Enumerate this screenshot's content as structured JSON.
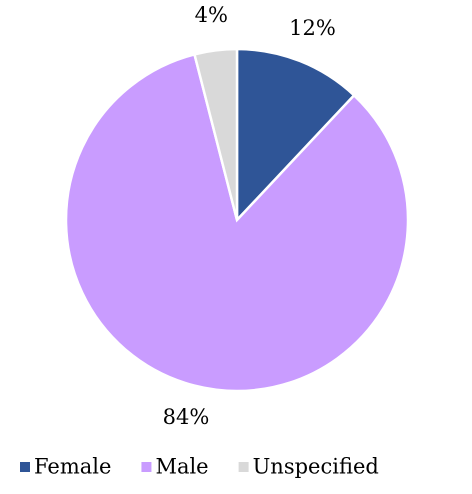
{
  "chart_data": {
    "type": "pie",
    "categories": [
      "Female",
      "Male",
      "Unspecified"
    ],
    "values": [
      12,
      84,
      4
    ],
    "value_labels": [
      "12%",
      "84%",
      "4%"
    ],
    "colors": [
      "#2f5597",
      "#c99cff",
      "#d9d9d9"
    ],
    "legend": "bottom"
  }
}
